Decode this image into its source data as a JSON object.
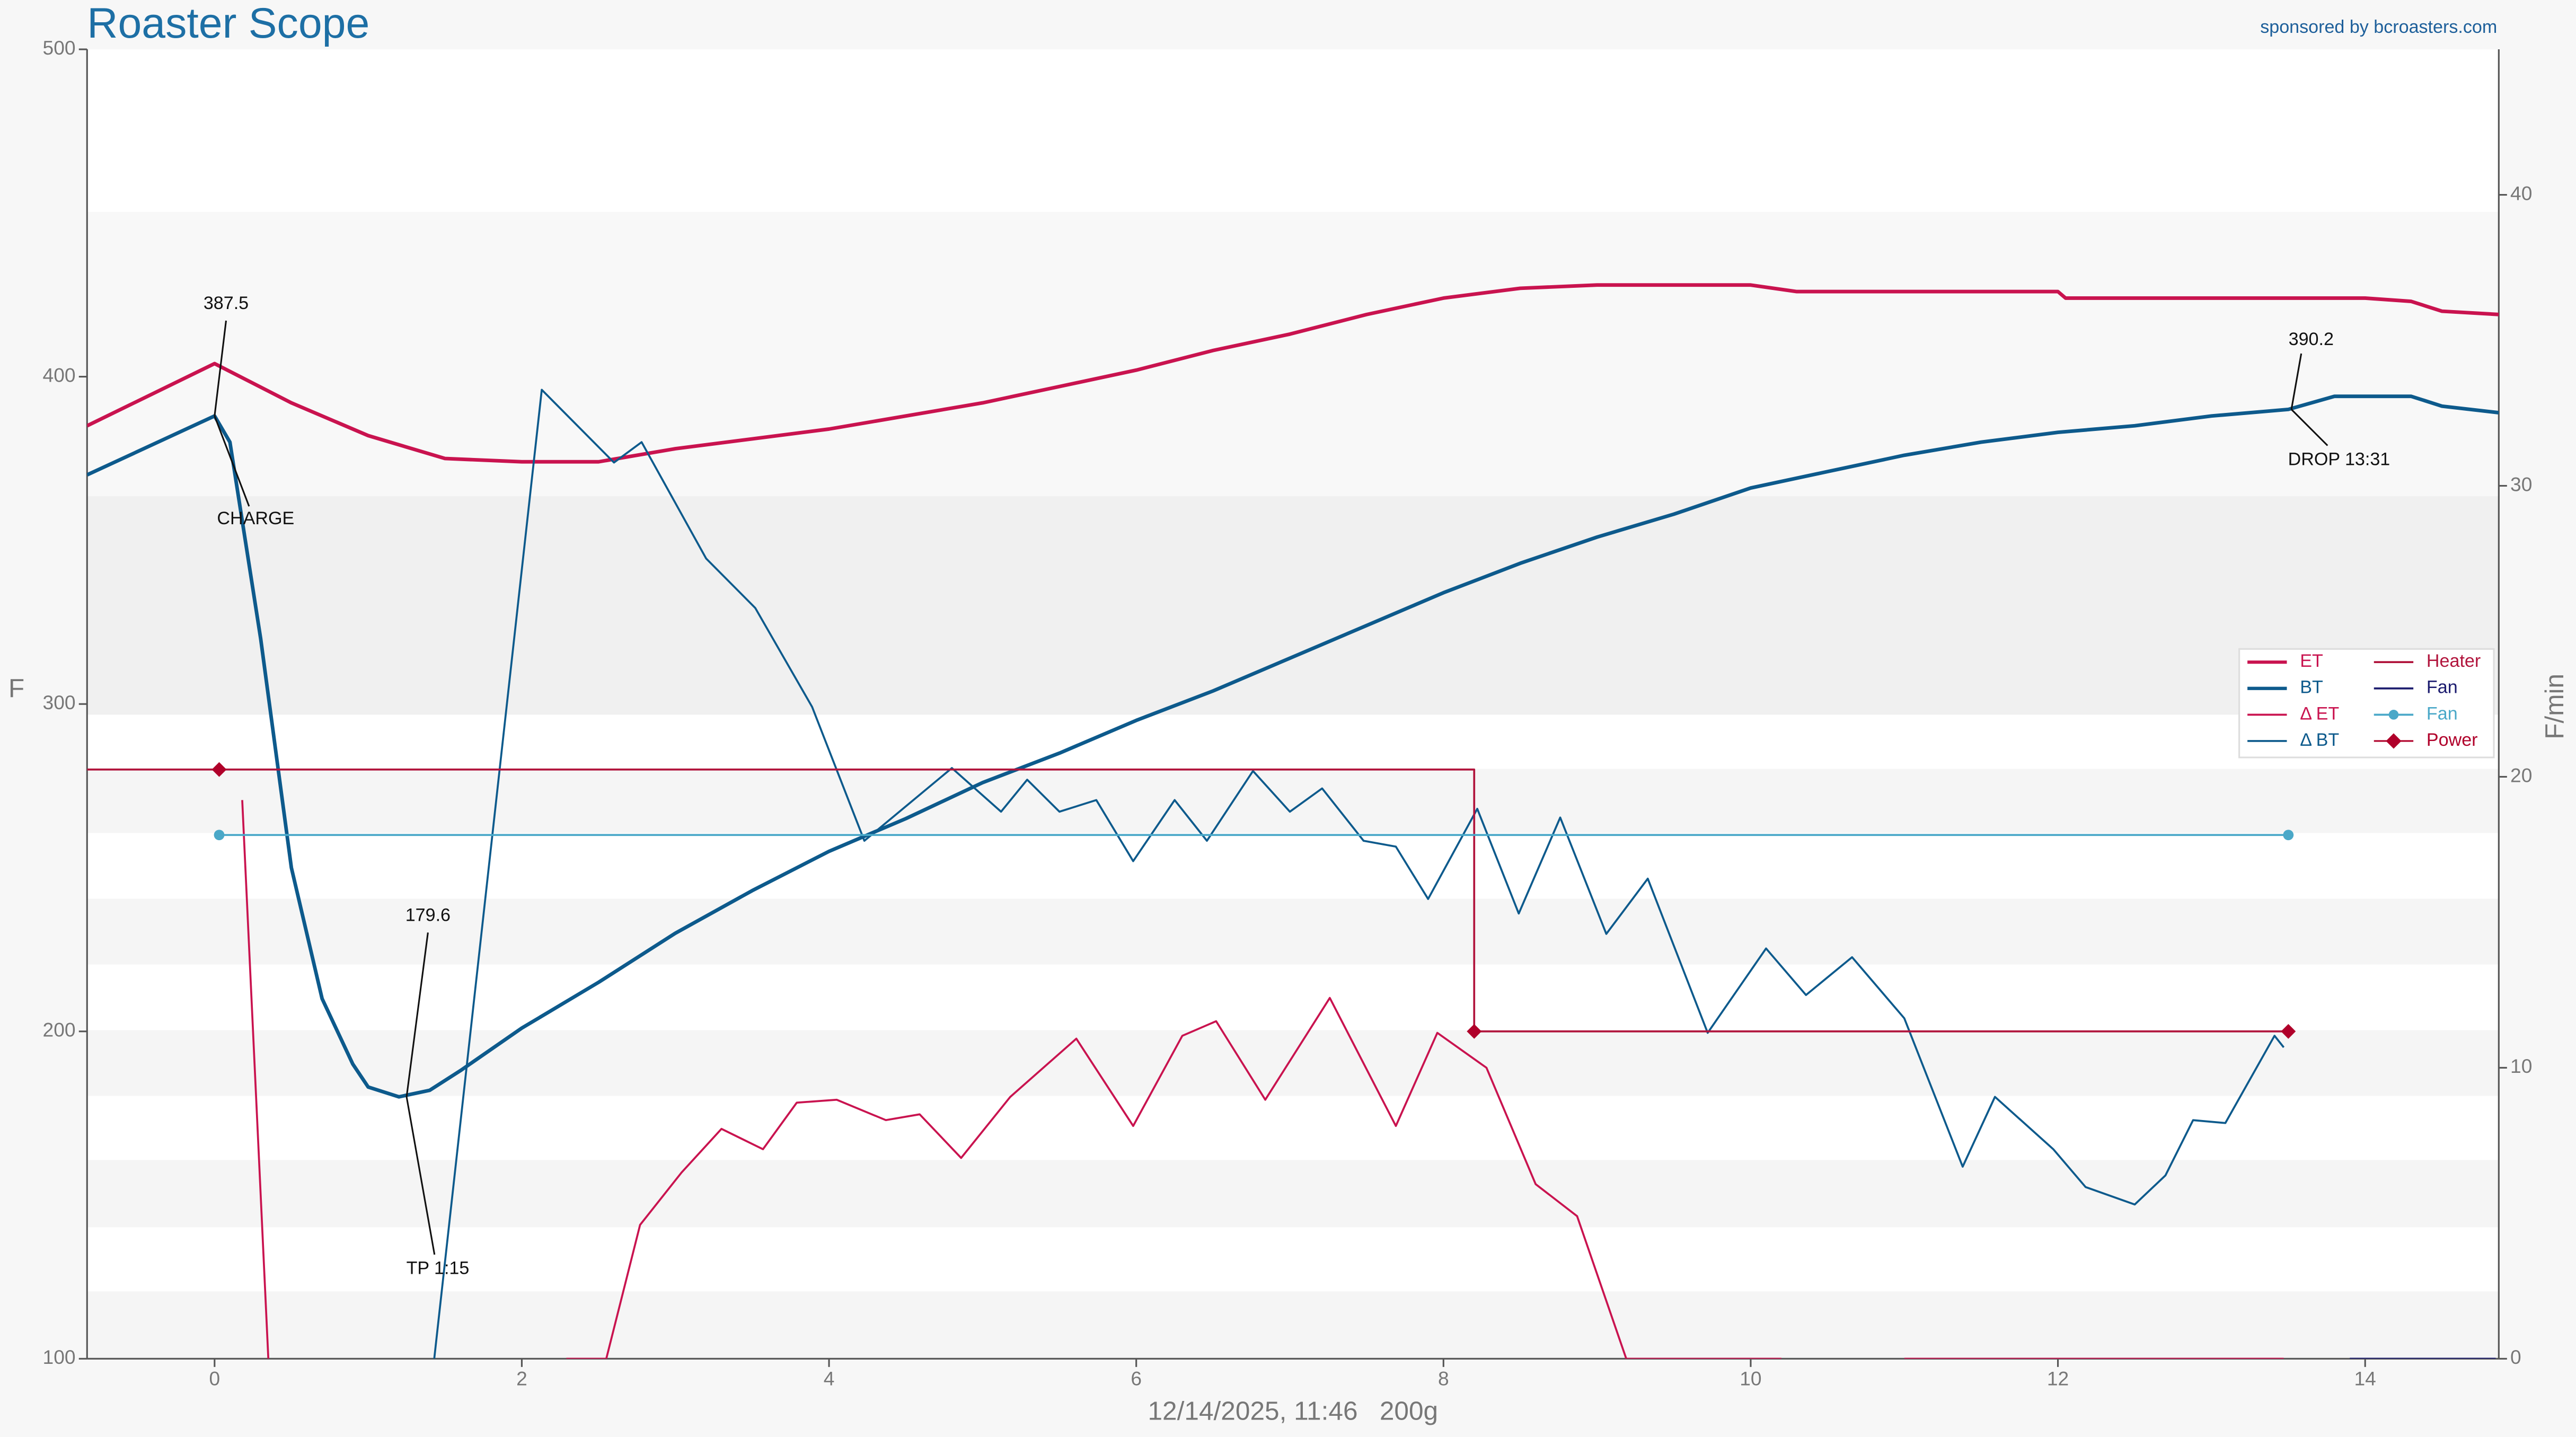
{
  "chart_data": {
    "type": "line",
    "title": "Roaster Scope",
    "subtitle": "sponsored by bcroasters.com",
    "xlabel": "12/14/2025, 11:46   200g",
    "ylabel": "F",
    "y2label": "F/min",
    "xlim": [
      -0.83,
      14.87
    ],
    "xticks": [
      0,
      2,
      4,
      6,
      8,
      10,
      12,
      14
    ],
    "ylim": [
      100,
      500
    ],
    "yticks": [
      100,
      200,
      300,
      400,
      500
    ],
    "y2lim": [
      0,
      45
    ],
    "y2ticks": [
      0,
      10,
      20,
      30,
      40
    ],
    "grid": false,
    "legend": "right",
    "series": [
      {
        "name": "ET",
        "color": "#c9134f",
        "style": "thick",
        "x": [
          -0.83,
          0,
          0.5,
          1,
          1.5,
          2,
          2.5,
          3,
          3.5,
          4,
          4.5,
          5,
          5.5,
          6,
          6.5,
          7,
          7.5,
          8,
          8.5,
          9,
          10,
          10.3,
          11,
          12,
          12.05,
          13,
          14,
          14.3,
          14.5,
          14.87
        ],
        "values": [
          385,
          404,
          392,
          382,
          375,
          374,
          374,
          378,
          381,
          384,
          388,
          392,
          397,
          402,
          408,
          413,
          419,
          424,
          427,
          428,
          428,
          426,
          426,
          426,
          424,
          424,
          424,
          423,
          420,
          419
        ]
      },
      {
        "name": "BT",
        "color": "#0d5a8c",
        "style": "thick",
        "x": [
          -0.83,
          0,
          0.1,
          0.3,
          0.5,
          0.7,
          0.9,
          1.0,
          1.2,
          1.4,
          1.6,
          2,
          2.5,
          3,
          3.5,
          4,
          4.5,
          5,
          5.5,
          6,
          6.5,
          7,
          7.5,
          8,
          8.5,
          9,
          9.5,
          10,
          10.5,
          11,
          11.5,
          12,
          12.5,
          13,
          13.5,
          13.8,
          14.3,
          14.5,
          14.87
        ],
        "values": [
          370,
          388,
          380,
          320,
          250,
          210,
          190,
          183,
          180,
          182,
          188,
          201,
          215,
          230,
          243,
          255,
          265,
          276,
          285,
          295,
          304,
          314,
          324,
          334,
          343,
          351,
          358,
          366,
          371,
          376,
          380,
          383,
          385,
          388,
          390,
          394,
          394,
          391,
          389
        ]
      },
      {
        "name": "Δ ET",
        "color": "#c9134f",
        "style": "thin",
        "axis": "y2",
        "x": [
          0.18,
          0.35,
          1.0,
          2.29,
          2.55,
          2.77,
          3.04,
          3.3,
          3.57,
          3.79,
          4.05,
          4.37,
          4.59,
          4.86,
          5.18,
          5.61,
          5.98,
          6.3,
          6.52,
          6.84,
          7.26,
          7.69,
          7.96,
          8.28,
          8.6,
          8.87,
          9.19,
          10.2,
          10.5,
          11,
          13.47
        ],
        "values": [
          19.2,
          0,
          null,
          0,
          0,
          4.6,
          6.4,
          7.9,
          7.2,
          8.8,
          8.9,
          8.2,
          8.4,
          6.9,
          9.0,
          11.0,
          8.0,
          11.1,
          11.6,
          8.9,
          12.4,
          8.0,
          11.2,
          10.0,
          6.0,
          4.9,
          0,
          0,
          null,
          0,
          0
        ]
      },
      {
        "name": "Δ BT",
        "color": "#0d5a8c",
        "style": "thin",
        "axis": "y2",
        "x": [
          1.43,
          2.13,
          2.6,
          2.78,
          3.2,
          3.52,
          3.89,
          4.23,
          4.8,
          5.12,
          5.29,
          5.5,
          5.74,
          5.98,
          6.25,
          6.46,
          6.76,
          7.0,
          7.21,
          7.48,
          7.69,
          7.9,
          8.22,
          8.49,
          8.76,
          9.06,
          9.33,
          9.72,
          10.1,
          10.36,
          10.66,
          11.0,
          11.38,
          11.59,
          11.97,
          12.18,
          12.5,
          12.7,
          12.88,
          13.09,
          13.41,
          13.47
        ],
        "values": [
          0,
          33.3,
          30.8,
          31.5,
          27.5,
          25.8,
          22.4,
          17.8,
          20.3,
          18.8,
          19.9,
          18.8,
          19.2,
          17.1,
          19.2,
          17.8,
          20.2,
          18.8,
          19.6,
          17.8,
          17.6,
          15.8,
          18.9,
          15.3,
          18.6,
          14.6,
          16.5,
          11.2,
          14.1,
          12.5,
          13.8,
          11.7,
          6.6,
          9.0,
          7.2,
          5.9,
          5.3,
          6.3,
          8.2,
          8.1,
          11.1,
          10.7
        ]
      },
      {
        "name": "Heater",
        "color": "#b1143c",
        "style": "step",
        "x": [
          -0.83,
          8.2,
          8.2,
          13.5
        ],
        "values": [
          280,
          280,
          200,
          200
        ]
      },
      {
        "name": "Fan",
        "color": "#1b1b6e",
        "style": "thin",
        "x": [
          13.9,
          14.85
        ],
        "values": [
          100,
          100
        ]
      },
      {
        "name": "Fan",
        "color": "#4aa8c8",
        "style": "thin",
        "marker": "circle",
        "x": [
          0.03,
          13.5
        ],
        "values": [
          260,
          260
        ]
      },
      {
        "name": "Power",
        "color": "#b0002a",
        "style": "none",
        "marker": "diamond",
        "x": [
          0.03,
          8.2,
          13.5
        ],
        "values": [
          280,
          200,
          200
        ]
      }
    ],
    "annotations": [
      {
        "text": "387.5",
        "x": 0,
        "y": 388
      },
      {
        "text": "CHARGE",
        "x": 0,
        "y": 388
      },
      {
        "text": "179.6",
        "x": 1.25,
        "y": 180
      },
      {
        "text": "TP 1:15",
        "x": 1.25,
        "y": 180
      },
      {
        "text": "390.2",
        "x": 13.52,
        "y": 390
      },
      {
        "text": "DROP 13:31",
        "x": 13.52,
        "y": 390
      }
    ]
  }
}
